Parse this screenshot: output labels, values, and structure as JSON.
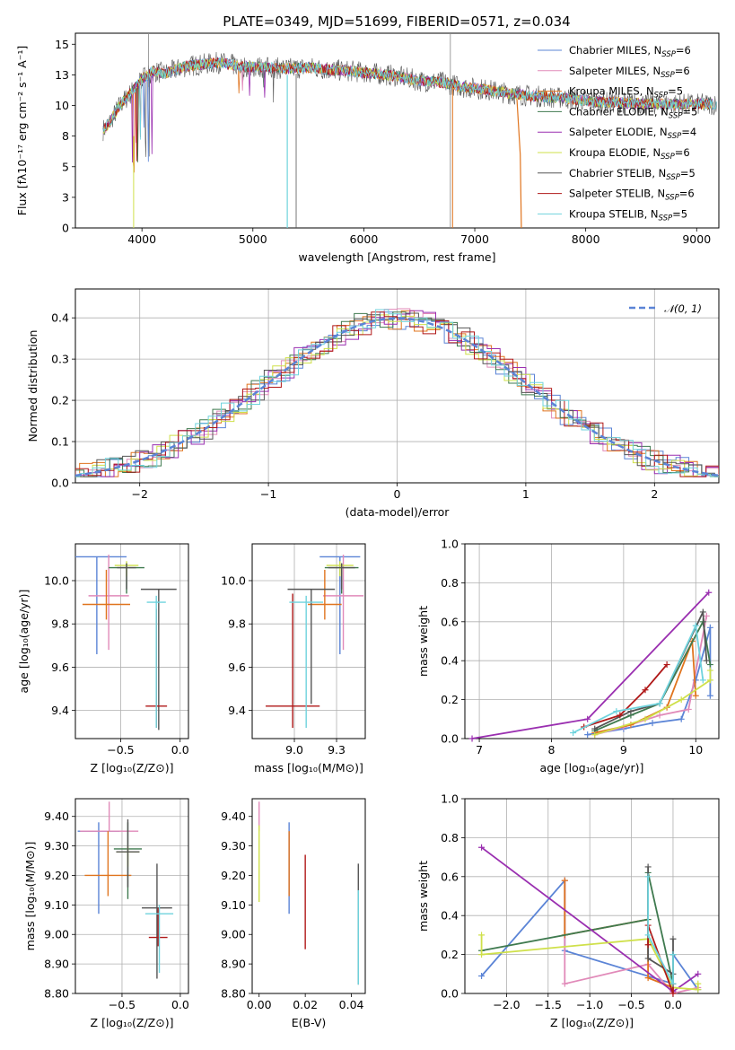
{
  "figure": {
    "title": "PLATE=0349, MJD=51699, FIBERID=0571, z=0.034"
  },
  "chart_data": [
    {
      "id": "spectrum",
      "type": "line",
      "xlabel": "wavelength [Angstrom, rest frame]",
      "ylabel": "Flux [fλ10⁻¹⁷ erg cm⁻² s⁻¹ A⁻¹]",
      "xlim": [
        3400,
        9200
      ],
      "ylim": [
        0,
        15.9
      ],
      "xticks": [
        4000,
        5000,
        6000,
        7000,
        8000,
        9000
      ],
      "yticks": [
        0.0,
        2.5,
        5.0,
        7.5,
        10.0,
        12.5,
        15.0
      ],
      "data_anchor": {
        "x": [
          3650,
          3700,
          3800,
          3900,
          4000,
          4100,
          4200,
          4300,
          4400,
          4500,
          4700,
          4900,
          5100,
          5300,
          5500,
          5700,
          5900,
          6100,
          6300,
          6500,
          6700,
          6900,
          7100,
          7300,
          7500,
          7800,
          8100,
          8400,
          8700,
          9000
        ],
        "y": [
          8.0,
          8.5,
          10.0,
          11.0,
          12.2,
          12.8,
          12.6,
          12.9,
          13.2,
          13.3,
          13.5,
          13.2,
          13.1,
          13.0,
          13.1,
          12.9,
          12.8,
          12.6,
          12.4,
          12.0,
          11.9,
          11.5,
          11.3,
          11.0,
          10.8,
          10.6,
          10.3,
          10.2,
          10.1,
          10.1
        ]
      },
      "legend": {
        "position": "top-right",
        "entries": [
          {
            "label": "Chabrier MILES, N",
            "sub": "SSP",
            "suffix": "=6",
            "color": "#5b84d6"
          },
          {
            "label": "Salpeter MILES, N",
            "sub": "SSP",
            "suffix": "=6",
            "color": "#e18ab9"
          },
          {
            "label": "Kroupa MILES, N",
            "sub": "SSP",
            "suffix": "=5",
            "color": "#e0741e"
          },
          {
            "label": "Chabrier ELODIE, N",
            "sub": "SSP",
            "suffix": "=5",
            "color": "#3f7a4f"
          },
          {
            "label": "Salpeter ELODIE, N",
            "sub": "SSP",
            "suffix": "=4",
            "color": "#9a2fb0"
          },
          {
            "label": "Kroupa ELODIE, N",
            "sub": "SSP",
            "suffix": "=6",
            "color": "#cfe04a"
          },
          {
            "label": "Chabrier STELIB, N",
            "sub": "SSP",
            "suffix": "=5",
            "color": "#555555"
          },
          {
            "label": "Salpeter STELIB, N",
            "sub": "SSP",
            "suffix": "=6",
            "color": "#b01818"
          },
          {
            "label": "Kroupa STELIB, N",
            "sub": "SSP",
            "suffix": "=5",
            "color": "#6fd3dd"
          }
        ]
      }
    },
    {
      "id": "residuals",
      "type": "line",
      "xlabel": "(data-model)/error",
      "ylabel": "Normed distribution",
      "xlim": [
        -2.5,
        2.5
      ],
      "ylim": [
        0,
        0.47
      ],
      "xticks": [
        -2,
        -1,
        0,
        1,
        2
      ],
      "yticks": [
        0.0,
        0.1,
        0.2,
        0.3,
        0.4
      ],
      "grid": true,
      "legend": {
        "position": "top-right",
        "entries": [
          {
            "label": "𝒩(0, 1)",
            "color": "#5b84d6",
            "dashed": true
          }
        ]
      }
    },
    {
      "id": "age-vs-Z",
      "type": "scatter",
      "xlabel": "Z [log₁₀(Z/Z⊙)]",
      "ylabel": "age  [log₁₀(age/yr)]",
      "xlim": [
        -0.88,
        0.07
      ],
      "ylim": [
        9.27,
        10.17
      ],
      "xticks": [
        -0.5,
        0.0
      ],
      "yticks": [
        9.4,
        9.6,
        9.8,
        10.0
      ],
      "grid": true,
      "points": [
        {
          "x": -0.7,
          "y": 10.11,
          "xerr": 0.25,
          "yerr": [
            0.45,
            0
          ],
          "color": "#5b84d6"
        },
        {
          "x": -0.6,
          "y": 9.93,
          "xerr": 0.17,
          "yerr": [
            0.25,
            0.19
          ],
          "color": "#e18ab9"
        },
        {
          "x": -0.62,
          "y": 9.89,
          "xerr": 0.2,
          "yerr": [
            0.07,
            0.16
          ],
          "color": "#e0741e"
        },
        {
          "x": -0.45,
          "y": 10.06,
          "xerr": 0.15,
          "yerr": [
            0.12,
            0.02
          ],
          "color": "#3f7a4f"
        },
        {
          "x": -0.45,
          "y": 10.07,
          "xerr": 0.1,
          "yerr": [
            0.05,
            0.02
          ],
          "color": "#cfe04a"
        },
        {
          "x": -0.45,
          "y": 10.06,
          "xerr": 0.08,
          "yerr": [
            0.1,
            0.02
          ],
          "color": "#555555"
        },
        {
          "x": -0.18,
          "y": 9.96,
          "xerr": 0.15,
          "yerr": [
            0.65,
            0
          ],
          "color": "#555555"
        },
        {
          "x": -0.2,
          "y": 9.42,
          "xerr": 0.09,
          "yerr": [
            0.1,
            0.45
          ],
          "color": "#b01818"
        },
        {
          "x": -0.2,
          "y": 9.9,
          "xerr": 0.08,
          "yerr": [
            0.58,
            0.03
          ],
          "color": "#6fd3dd"
        }
      ]
    },
    {
      "id": "age-vs-mass",
      "type": "scatter",
      "xlabel": "mass [log₁₀(M/M⊙)]",
      "ylabel": "",
      "xlim": [
        8.75,
        9.42
      ],
      "ylim": [
        9.27,
        10.17
      ],
      "xticks": [
        9.0,
        9.25
      ],
      "yticks": [
        9.4,
        9.6,
        9.8,
        10.0
      ],
      "grid": true,
      "points": [
        {
          "x": 9.27,
          "y": 10.11,
          "xerr": 0.12,
          "yerr": [
            0.45,
            0
          ],
          "color": "#5b84d6"
        },
        {
          "x": 9.29,
          "y": 9.93,
          "xerr": 0.12,
          "yerr": [
            0.25,
            0.19
          ],
          "color": "#e18ab9"
        },
        {
          "x": 9.18,
          "y": 9.89,
          "xerr": 0.1,
          "yerr": [
            0.07,
            0.16
          ],
          "color": "#e0741e"
        },
        {
          "x": 9.28,
          "y": 10.06,
          "xerr": 0.1,
          "yerr": [
            0.12,
            0.02
          ],
          "color": "#3f7a4f"
        },
        {
          "x": 9.27,
          "y": 10.07,
          "xerr": 0.08,
          "yerr": [
            0.05,
            0.02
          ],
          "color": "#cfe04a"
        },
        {
          "x": 9.28,
          "y": 10.06,
          "xerr": 0.08,
          "yerr": [
            0.1,
            0.02
          ],
          "color": "#555555"
        },
        {
          "x": 9.1,
          "y": 9.96,
          "xerr": 0.14,
          "yerr": [
            0.53,
            0
          ],
          "color": "#555555"
        },
        {
          "x": 8.99,
          "y": 9.42,
          "xerr": 0.16,
          "yerr": [
            0.1,
            0.52
          ],
          "color": "#b01818"
        },
        {
          "x": 9.07,
          "y": 9.9,
          "xerr": 0.1,
          "yerr": [
            0.58,
            0.03
          ],
          "color": "#6fd3dd"
        }
      ]
    },
    {
      "id": "massweight-vs-age",
      "type": "line",
      "xlabel": "age  [log₁₀(age/yr)]",
      "ylabel": "mass weight",
      "xlim": [
        6.8,
        10.32
      ],
      "ylim": [
        0,
        1.0
      ],
      "xticks": [
        7,
        8,
        9,
        10
      ],
      "yticks": [
        0.0,
        0.2,
        0.4,
        0.6,
        0.8,
        1.0
      ],
      "grid": true,
      "series": [
        {
          "color": "#5b84d6",
          "x": [
            8.5,
            9.0,
            9.4,
            9.8,
            10.0,
            10.2,
            10.2
          ],
          "y": [
            0.02,
            0.05,
            0.08,
            0.1,
            0.3,
            0.57,
            0.22
          ]
        },
        {
          "color": "#e18ab9",
          "x": [
            8.6,
            9.0,
            9.5,
            9.9,
            10.15
          ],
          "y": [
            0.02,
            0.06,
            0.12,
            0.15,
            0.63
          ]
        },
        {
          "color": "#e0741e",
          "x": [
            8.6,
            9.1,
            9.6,
            9.95,
            10.0
          ],
          "y": [
            0.03,
            0.07,
            0.16,
            0.5,
            0.22
          ]
        },
        {
          "color": "#3f7a4f",
          "x": [
            8.6,
            9.1,
            9.5,
            10.1,
            10.2
          ],
          "y": [
            0.04,
            0.12,
            0.18,
            0.6,
            0.38
          ]
        },
        {
          "color": "#9a2fb0",
          "x": [
            6.9,
            8.5,
            10.18
          ],
          "y": [
            0.0,
            0.1,
            0.75
          ]
        },
        {
          "color": "#cfe04a",
          "x": [
            8.6,
            9.3,
            9.8,
            10.2,
            10.2
          ],
          "y": [
            0.02,
            0.1,
            0.2,
            0.3,
            0.35
          ]
        },
        {
          "color": "#555555",
          "x": [
            8.6,
            9.1,
            9.5,
            10.1,
            10.15
          ],
          "y": [
            0.05,
            0.14,
            0.18,
            0.65,
            0.4
          ]
        },
        {
          "color": "#b01818",
          "x": [
            8.45,
            8.95,
            9.3,
            9.6
          ],
          "y": [
            0.06,
            0.12,
            0.25,
            0.38
          ]
        },
        {
          "color": "#6fd3dd",
          "x": [
            8.3,
            8.9,
            9.5,
            10.0,
            10.1
          ],
          "y": [
            0.03,
            0.14,
            0.18,
            0.58,
            0.3
          ]
        }
      ]
    },
    {
      "id": "mass-vs-Z",
      "type": "scatter",
      "xlabel": "Z [log₁₀(Z/Z⊙)]",
      "ylabel": "mass [log₁₀(M/M⊙)]",
      "xlim": [
        -0.9,
        0.07
      ],
      "ylim": [
        8.8,
        9.46
      ],
      "xticks": [
        -0.5,
        0.0
      ],
      "yticks": [
        8.8,
        8.9,
        9.0,
        9.1,
        9.2,
        9.3,
        9.4
      ],
      "grid": true,
      "points": [
        {
          "x": -0.7,
          "y": 9.35,
          "xerr": 0.18,
          "yerr": [
            0.28,
            0.03
          ],
          "color": "#5b84d6"
        },
        {
          "x": -0.61,
          "y": 9.35,
          "xerr": 0.25,
          "yerr": [
            0.0,
            0.1
          ],
          "color": "#e18ab9"
        },
        {
          "x": -0.62,
          "y": 9.2,
          "xerr": 0.2,
          "yerr": [
            0.07,
            0.15
          ],
          "color": "#e0741e"
        },
        {
          "x": -0.45,
          "y": 9.29,
          "xerr": 0.12,
          "yerr": [
            0.17,
            0.09
          ],
          "color": "#3f7a4f"
        },
        {
          "x": -0.45,
          "y": 9.28,
          "xerr": 0.1,
          "yerr": [
            0.05,
            0.02
          ],
          "color": "#cfe04a"
        },
        {
          "x": -0.45,
          "y": 9.28,
          "xerr": 0.1,
          "yerr": [
            0.12,
            0.11
          ],
          "color": "#555555"
        },
        {
          "x": -0.2,
          "y": 9.09,
          "xerr": 0.13,
          "yerr": [
            0.24,
            0.15
          ],
          "color": "#555555"
        },
        {
          "x": -0.19,
          "y": 8.99,
          "xerr": 0.08,
          "yerr": [
            0.03,
            0.1
          ],
          "color": "#b01818"
        },
        {
          "x": -0.18,
          "y": 9.07,
          "xerr": 0.12,
          "yerr": [
            0.2,
            0.03
          ],
          "color": "#6fd3dd"
        }
      ]
    },
    {
      "id": "mass-vs-EBV",
      "type": "scatter",
      "xlabel": "E(B-V)",
      "ylabel": "",
      "xlim": [
        -0.003,
        0.046
      ],
      "ylim": [
        8.8,
        9.46
      ],
      "xticks": [
        0.0,
        0.02,
        0.04
      ],
      "yticks": [
        8.8,
        8.9,
        9.0,
        9.1,
        9.2,
        9.3,
        9.4
      ],
      "grid": false,
      "points": [
        {
          "x": 0.0,
          "y": 9.35,
          "yerr": [
            0.0,
            0.1
          ],
          "color": "#e18ab9"
        },
        {
          "x": 0.0,
          "y": 9.28,
          "yerr": [
            0.17,
            0.09
          ],
          "color": "#cfe04a"
        },
        {
          "x": 0.013,
          "y": 9.2,
          "yerr": [
            0.13,
            0.18
          ],
          "color": "#5b84d6"
        },
        {
          "x": 0.013,
          "y": 9.2,
          "yerr": [
            0.07,
            0.15
          ],
          "color": "#e0741e"
        },
        {
          "x": 0.02,
          "y": 9.1,
          "yerr": [
            0.15,
            0.17
          ],
          "color": "#b01818"
        },
        {
          "x": 0.043,
          "y": 9.09,
          "yerr": [
            0.26,
            0.15
          ],
          "color": "#555555"
        },
        {
          "x": 0.043,
          "y": 9.05,
          "yerr": [
            0.22,
            0.1
          ],
          "color": "#6fd3dd"
        }
      ]
    },
    {
      "id": "massweight-vs-Z",
      "type": "line",
      "xlabel": "Z [log₁₀(Z/Z⊙)]",
      "ylabel": "mass weight",
      "xlim": [
        -2.5,
        0.55
      ],
      "ylim": [
        0,
        1.0
      ],
      "xticks": [
        -2.0,
        -1.5,
        -1.0,
        -0.5,
        0.0
      ],
      "yticks": [
        0.0,
        0.2,
        0.4,
        0.6,
        0.8,
        1.0
      ],
      "grid": true,
      "series": [
        {
          "color": "#5b84d6",
          "x": [
            -2.3,
            -1.3,
            -1.3,
            0.0,
            0.0,
            0.3
          ],
          "y": [
            0.09,
            0.58,
            0.22,
            0.05,
            0.2,
            0.02
          ]
        },
        {
          "color": "#e18ab9",
          "x": [
            -1.3,
            -1.3,
            -0.3,
            0.0,
            0.3
          ],
          "y": [
            0.58,
            0.05,
            0.15,
            0.0,
            0.03
          ]
        },
        {
          "color": "#e0741e",
          "x": [
            -1.3,
            -1.3,
            -0.3,
            -0.3,
            0.0,
            0.0
          ],
          "y": [
            0.58,
            0.3,
            0.38,
            0.08,
            0.03,
            0.2
          ]
        },
        {
          "color": "#3f7a4f",
          "x": [
            -2.3,
            -0.3,
            -0.3,
            0.0,
            0.0
          ],
          "y": [
            0.22,
            0.38,
            0.62,
            0.05,
            0.2
          ]
        },
        {
          "color": "#9a2fb0",
          "x": [
            -2.3,
            0.0,
            0.3
          ],
          "y": [
            0.75,
            0.01,
            0.1
          ]
        },
        {
          "color": "#cfe04a",
          "x": [
            -2.3,
            -2.3,
            -0.3,
            0.0,
            0.3,
            0.3
          ],
          "y": [
            0.3,
            0.2,
            0.28,
            0.03,
            0.02,
            0.05
          ]
        },
        {
          "color": "#555555",
          "x": [
            -0.3,
            -0.3,
            0.0,
            0.0
          ],
          "y": [
            0.65,
            0.18,
            0.1,
            0.28
          ]
        },
        {
          "color": "#b01818",
          "x": [
            -0.3,
            -0.3,
            0.0,
            0.0
          ],
          "y": [
            0.25,
            0.35,
            0.0,
            0.05
          ]
        },
        {
          "color": "#6fd3dd",
          "x": [
            -0.3,
            -0.3,
            0.0,
            0.0
          ],
          "y": [
            0.6,
            0.3,
            0.05,
            0.2
          ]
        }
      ]
    }
  ]
}
